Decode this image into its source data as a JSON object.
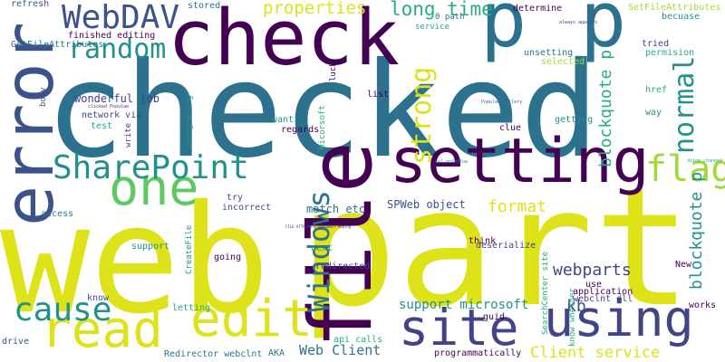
{
  "word_cloud": {
    "background": "#ffffff",
    "palette": {
      "dark_purple": "#440154",
      "indigo": "#414487",
      "slate_blue": "#3b528b",
      "blue": "#2c728e",
      "teal": "#21918c",
      "sea_green": "#27ad81",
      "green": "#5ec962",
      "lime": "#a0da39",
      "yellow": "#dde318"
    },
    "words": [
      {
        "text": "checked",
        "color": "#2c728e"
      },
      {
        "text": "web",
        "color": "#dde318"
      },
      {
        "text": "part",
        "color": "#dde318"
      },
      {
        "text": "check",
        "color": "#440154"
      },
      {
        "text": "p",
        "color": "#2c728e"
      },
      {
        "text": "p",
        "color": "#2c728e"
      },
      {
        "text": "error",
        "color": "#3b528b"
      },
      {
        "text": "file",
        "color": "#440154"
      },
      {
        "text": "setting",
        "color": "#440154"
      },
      {
        "text": "one",
        "color": "#5ec962"
      },
      {
        "text": "site",
        "color": "#414487"
      },
      {
        "text": "using",
        "color": "#414487"
      },
      {
        "text": "read",
        "color": "#dde318"
      },
      {
        "text": "edit",
        "color": "#dde318"
      },
      {
        "text": "SharePoint",
        "color": "#21918c"
      },
      {
        "text": "WebDAV",
        "color": "#3b528b"
      },
      {
        "text": "flag",
        "color": "#a0da39"
      },
      {
        "text": "cause",
        "color": "#21918c"
      },
      {
        "text": "Windows",
        "color": "#2c728e"
      },
      {
        "text": "normal",
        "color": "#21918c"
      },
      {
        "text": "strong",
        "color": "#dde318"
      },
      {
        "text": "random",
        "color": "#21918c"
      },
      {
        "text": "long time",
        "color": "#27ad81"
      },
      {
        "text": "blockquote p",
        "color": "#27ad81"
      },
      {
        "text": "blockquote p",
        "color": "#21918c"
      },
      {
        "text": "properties",
        "color": "#dde318"
      },
      {
        "text": "determine",
        "color": "#440154"
      },
      {
        "text": "format",
        "color": "#dde318"
      },
      {
        "text": "webparts",
        "color": "#414487"
      },
      {
        "text": "kb",
        "color": "#3b528b"
      },
      {
        "text": "Web Client",
        "color": "#2c728e"
      },
      {
        "text": "Client service",
        "color": "#dde318"
      },
      {
        "text": "support microsoft",
        "color": "#21918c"
      },
      {
        "text": "SPWeb object",
        "color": "#3b528b"
      },
      {
        "text": "match etc",
        "color": "#2c728e"
      },
      {
        "text": "wonderful job",
        "color": "#414487"
      },
      {
        "text": "refresh",
        "color": "#3b528b"
      },
      {
        "text": "finished editing",
        "color": "#440154"
      },
      {
        "text": "GetFileAttributes",
        "color": "#2c728e"
      },
      {
        "text": "network via",
        "color": "#414487"
      },
      {
        "text": "test",
        "color": "#27ad81"
      },
      {
        "text": "body",
        "color": "#3b528b"
      },
      {
        "text": "stored",
        "color": "#2c728e"
      },
      {
        "text": "0 path",
        "color": "#2c728e"
      },
      {
        "text": "service",
        "color": "#27ad81"
      },
      {
        "text": "unsetting",
        "color": "#2c728e"
      },
      {
        "text": "selected",
        "color": "#a0da39"
      },
      {
        "text": "SetFileAttributes",
        "color": "#a0da39"
      },
      {
        "text": "becuase",
        "color": "#21918c"
      },
      {
        "text": "tried",
        "color": "#414487"
      },
      {
        "text": "permision",
        "color": "#27ad81"
      },
      {
        "text": "href",
        "color": "#27ad81"
      },
      {
        "text": "way",
        "color": "#21918c"
      },
      {
        "text": "getting",
        "color": "#21918c"
      },
      {
        "text": "clue",
        "color": "#440154"
      },
      {
        "text": "want",
        "color": "#21918c"
      },
      {
        "text": "regards",
        "color": "#440154"
      },
      {
        "text": "list",
        "color": "#440154"
      },
      {
        "text": "luck",
        "color": "#440154"
      },
      {
        "text": "Micorsoft",
        "color": "#27ad81"
      },
      {
        "text": "integrating",
        "color": "#21918c"
      },
      {
        "text": "write",
        "color": "#414487"
      },
      {
        "text": "incorrect",
        "color": "#3b528b"
      },
      {
        "text": "try",
        "color": "#3b528b"
      },
      {
        "text": "access",
        "color": "#2c728e"
      },
      {
        "text": "CreateFile",
        "color": "#21918c"
      },
      {
        "text": "going",
        "color": "#440154"
      },
      {
        "text": "support",
        "color": "#21918c"
      },
      {
        "text": "next",
        "color": "#21918c"
      },
      {
        "text": "redirected",
        "color": "#414487"
      },
      {
        "text": "think",
        "color": "#440154"
      },
      {
        "text": "deserialize",
        "color": "#414487"
      },
      {
        "text": "guid",
        "color": "#440154"
      },
      {
        "text": "SearchCenter site",
        "color": "#27ad81"
      },
      {
        "text": "know whether",
        "color": "#27ad81"
      },
      {
        "text": "use",
        "color": "#440154"
      },
      {
        "text": "application",
        "color": "#440154"
      },
      {
        "text": "webclnt dll",
        "color": "#414487"
      },
      {
        "text": "New",
        "color": "#440154"
      },
      {
        "text": "works",
        "color": "#440154"
      },
      {
        "text": "know",
        "color": "#3b528b"
      },
      {
        "text": "letting",
        "color": "#27ad81"
      },
      {
        "text": "drive",
        "color": "#3b528b"
      },
      {
        "text": "Redirector webclnt",
        "color": "#2c728e"
      },
      {
        "text": "AKA",
        "color": "#2c728e"
      },
      {
        "text": "api calls",
        "color": "#27ad81"
      },
      {
        "text": "programmatically",
        "color": "#440154"
      },
      {
        "text": "always appears",
        "color": "#414487"
      },
      {
        "text": "Populae Gallery",
        "color": "#2c728e"
      },
      {
        "text": "cel nofollow",
        "color": "#21918c"
      },
      {
        "text": "clicked Populae",
        "color": "#414487"
      },
      {
        "text": "FILE ATTRIBUTE READONLY hoping",
        "color": "#414487"
      },
      {
        "text": "doing changed",
        "color": "#27ad81"
      }
    ]
  }
}
